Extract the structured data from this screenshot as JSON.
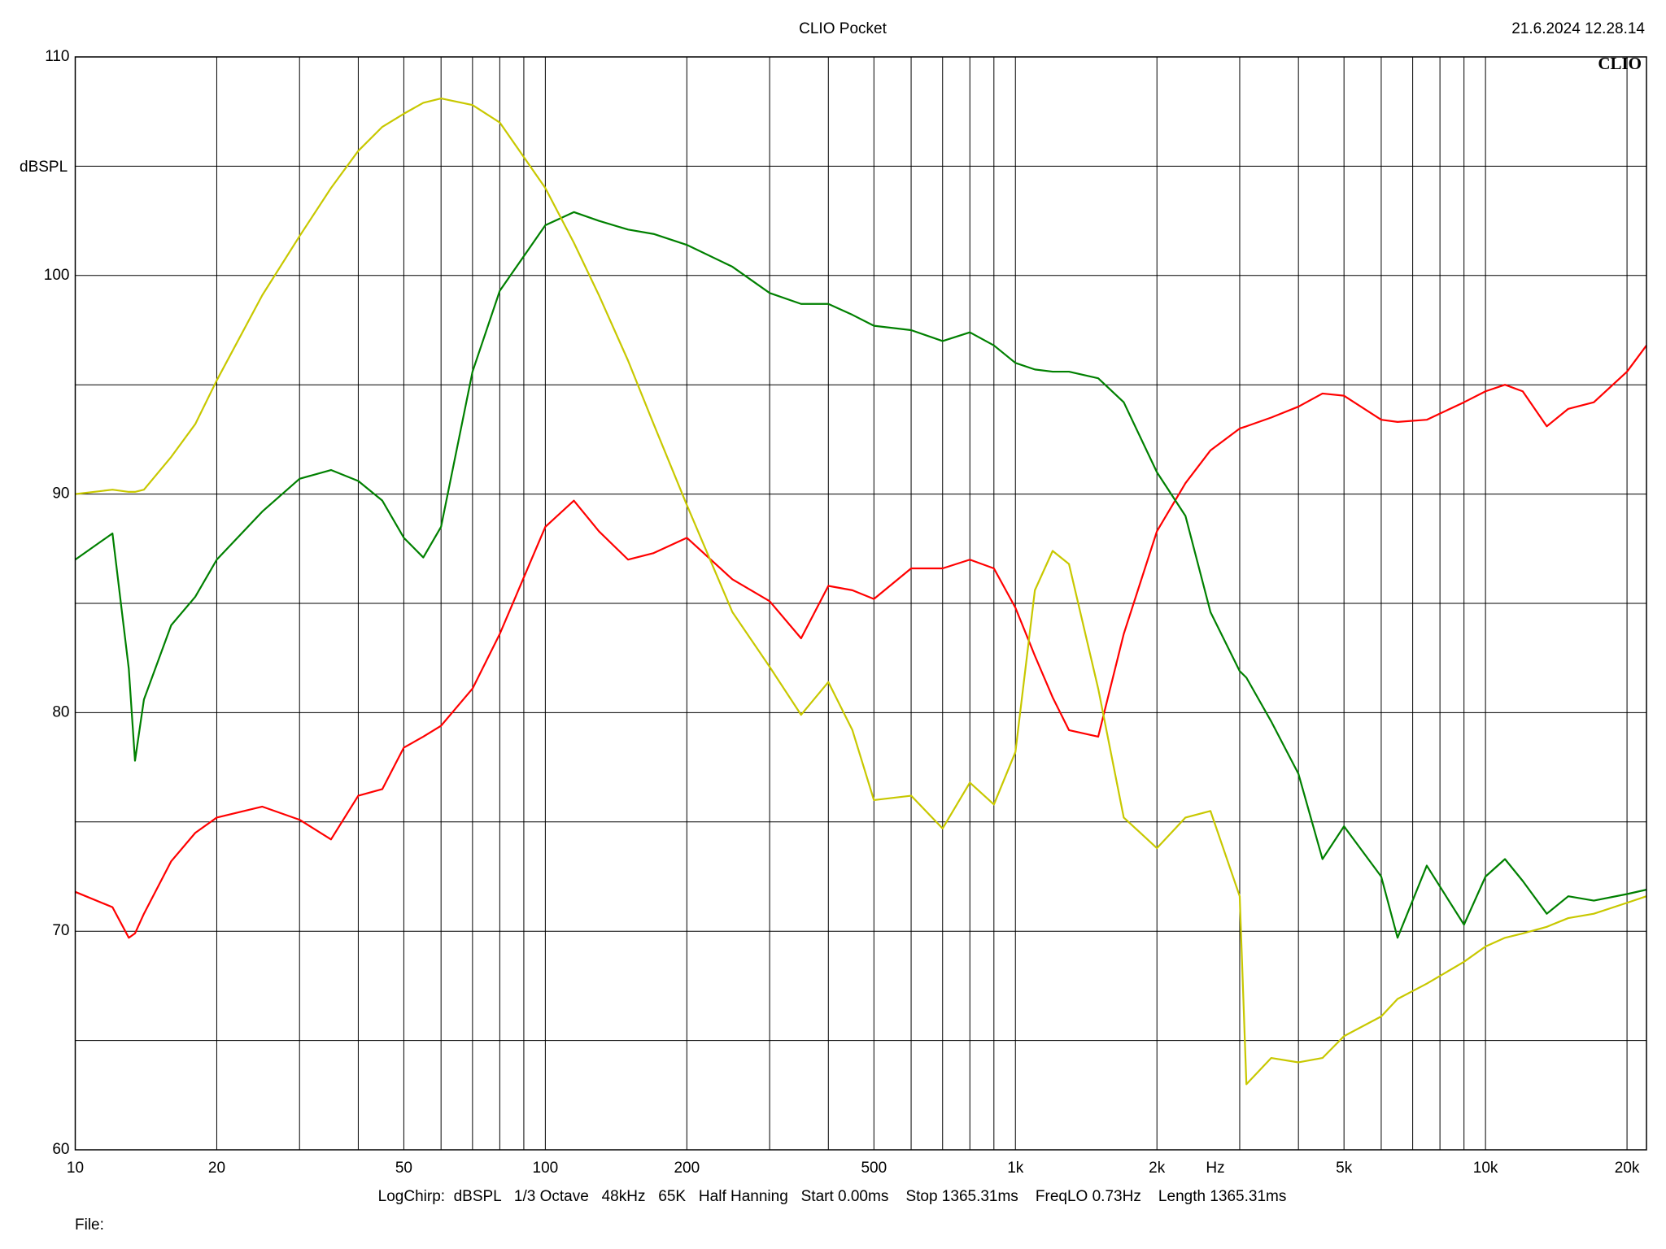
{
  "chart_data": {
    "type": "line",
    "title": "CLIO Pocket",
    "timestamp": "21.6.2024 12.28.14",
    "logo": "CLIO",
    "ylabel": "dBSPL",
    "xlabel": "Hz",
    "settings": "LogChirp:  dBSPL   1/3 Octave   48kHz   65K   Half Hanning   Start 0.00ms    Stop 1365.31ms    FreqLO 0.73Hz    Length 1365.31ms",
    "file_label": "File:",
    "xscale": "log",
    "grid": true,
    "xlim": [
      10,
      22000
    ],
    "ylim": [
      60,
      110
    ],
    "xticks": [
      10,
      20,
      50,
      100,
      200,
      500,
      {
        "value": 1000,
        "label": "1k"
      },
      {
        "value": 2000,
        "label": "2k"
      },
      {
        "value": 5000,
        "label": "5k"
      },
      {
        "value": 10000,
        "label": "10k"
      },
      {
        "value": 20000,
        "label": "20k"
      }
    ],
    "xgrid_minor": [
      30,
      40,
      60,
      70,
      80,
      90,
      300,
      400,
      600,
      700,
      800,
      900,
      3000,
      4000,
      6000,
      7000,
      8000,
      9000
    ],
    "yticks": [
      60,
      70,
      80,
      90,
      100,
      110
    ],
    "ygrid_minor": [
      65,
      75,
      85,
      95,
      105
    ],
    "x": [
      10,
      12,
      13,
      13.4,
      14,
      16,
      18,
      20,
      25,
      30,
      35,
      40,
      45,
      50,
      55,
      60,
      70,
      80,
      100,
      115,
      130,
      150,
      170,
      200,
      250,
      300,
      350,
      400,
      450,
      500,
      600,
      700,
      800,
      900,
      1000,
      1100,
      1200,
      1300,
      1500,
      1700,
      2000,
      2300,
      2600,
      3000,
      3100,
      3500,
      4000,
      4500,
      5000,
      6000,
      6500,
      7500,
      9000,
      10000,
      11000,
      12000,
      13500,
      15000,
      17000,
      20000,
      22000
    ],
    "series": [
      {
        "color": "#ff0000",
        "values": [
          71.8,
          71.1,
          69.7,
          69.9,
          70.8,
          73.2,
          74.5,
          75.2,
          75.7,
          75.1,
          74.2,
          76.2,
          76.5,
          78.4,
          78.9,
          79.4,
          81.1,
          83.6,
          88.5,
          89.7,
          88.3,
          87.0,
          87.3,
          88.0,
          86.1,
          85.1,
          83.4,
          85.8,
          85.6,
          85.2,
          86.6,
          86.6,
          87.0,
          86.6,
          84.8,
          82.6,
          80.7,
          79.2,
          78.9,
          83.6,
          88.3,
          90.5,
          92.0,
          93.0,
          93.1,
          93.5,
          94.0,
          94.6,
          94.5,
          93.4,
          93.3,
          93.4,
          94.2,
          94.7,
          95.0,
          94.7,
          93.1,
          93.9,
          94.2,
          95.6,
          96.8
        ]
      },
      {
        "color": "#008000",
        "values": [
          87.0,
          88.2,
          82.0,
          77.8,
          80.6,
          84.0,
          85.3,
          87.0,
          89.2,
          90.7,
          91.1,
          90.6,
          89.7,
          88.0,
          87.1,
          88.5,
          95.6,
          99.3,
          102.3,
          102.9,
          102.5,
          102.1,
          101.9,
          101.4,
          100.4,
          99.2,
          98.7,
          98.7,
          98.2,
          97.7,
          97.5,
          97.0,
          97.4,
          96.8,
          96.0,
          95.7,
          95.6,
          95.6,
          95.3,
          94.2,
          91.0,
          89.0,
          84.6,
          81.9,
          81.6,
          79.6,
          77.2,
          73.3,
          74.8,
          72.5,
          69.7,
          73.0,
          70.3,
          72.5,
          73.3,
          72.3,
          70.8,
          71.6,
          71.4,
          71.7,
          71.9
        ]
      },
      {
        "color": "#c8c800",
        "values": [
          90.0,
          90.2,
          90.1,
          90.1,
          90.2,
          91.7,
          93.2,
          95.2,
          99.1,
          101.8,
          104.0,
          105.7,
          106.8,
          107.4,
          107.9,
          108.1,
          107.8,
          107.0,
          104.0,
          101.5,
          99.1,
          96.1,
          93.2,
          89.5,
          84.6,
          82.1,
          79.9,
          81.4,
          79.2,
          76.0,
          76.2,
          74.7,
          76.8,
          75.8,
          78.2,
          85.6,
          87.4,
          86.8,
          81.1,
          75.2,
          73.8,
          75.2,
          75.5,
          71.6,
          63.0,
          64.2,
          64.0,
          64.2,
          65.2,
          66.1,
          66.9,
          67.6,
          68.6,
          69.3,
          69.7,
          69.9,
          70.2,
          70.6,
          70.8,
          71.3,
          71.6
        ]
      }
    ]
  }
}
